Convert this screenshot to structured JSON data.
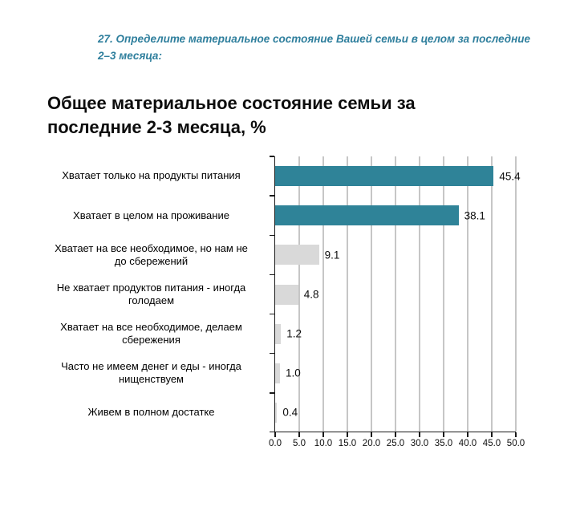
{
  "question_header": {
    "line1": "27. Определите материальное состояние Вашей семьи в целом за последние",
    "line2": "2–3 месяца:",
    "color": "#2F7F9D"
  },
  "chart_title": {
    "line1": "Общее материальное состояние семьи за",
    "line2": "последние 2-3 месяца, %"
  },
  "chart_data": {
    "type": "bar",
    "orientation": "horizontal",
    "title": "Общее материальное состояние семьи за последние 2-3 месяца, %",
    "categories": [
      "Хватает только на продукты питания",
      "Хватает в целом на проживание",
      "Хватает на все необходимое, но нам не\nдо сбережений",
      "Не хватает продуктов питания - иногда\nголодаем",
      "Хватает на все необходимое, делаем\nсбережения",
      "Часто не имеем денег и еды - иногда\nнищенствуем",
      "Живем в полном достатке"
    ],
    "values": [
      45.4,
      38.1,
      9.1,
      4.8,
      1.2,
      1.0,
      0.4
    ],
    "value_labels": [
      "45.4",
      "38.1",
      "9.1",
      "4.8",
      "1.2",
      "1.0",
      "0.4"
    ],
    "bar_colors": [
      "#2F8398",
      "#2F8398",
      "#D9D9D9",
      "#D9D9D9",
      "#D9D9D9",
      "#D9D9D9",
      "#D9D9D9"
    ],
    "xlim": [
      0,
      50
    ],
    "x_tick_step": 5,
    "x_tick_labels": [
      "0.0",
      "5.0",
      "10.0",
      "15.0",
      "20.0",
      "25.0",
      "30.0",
      "35.0",
      "40.0",
      "45.0",
      "50.0"
    ],
    "grid": true,
    "gridline_color": "#C6C6C6",
    "axis_color": "#1A1A1A"
  }
}
